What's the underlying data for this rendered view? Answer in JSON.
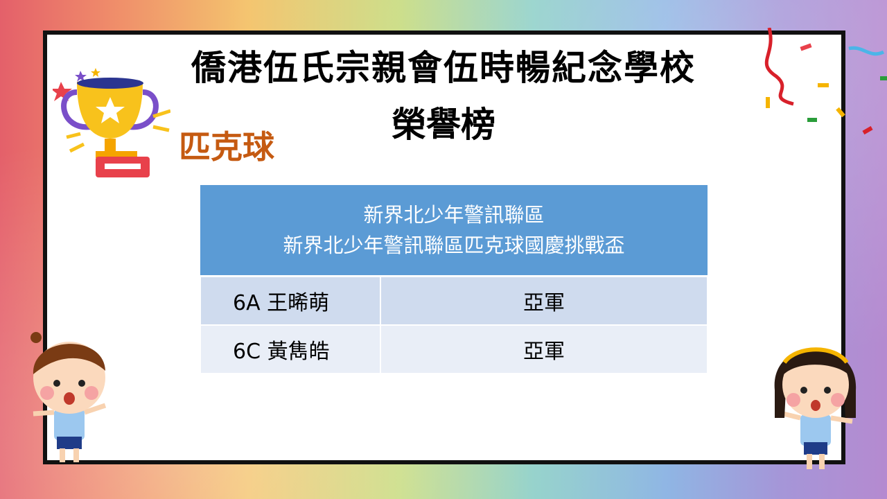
{
  "slide": {
    "school_title": "僑港伍氏宗親會伍時暢紀念學校",
    "subtitle": "榮譽榜",
    "sport": "匹克球"
  },
  "table": {
    "header_lines": [
      "新界北少年警訊聯區",
      "新界北少年警訊聯區匹克球國慶挑戰盃"
    ],
    "rows": [
      {
        "student": "6A 王晞萌",
        "award": "亞軍"
      },
      {
        "student": "6C 黃雋皓",
        "award": "亞軍"
      }
    ]
  },
  "colors": {
    "header": "#5b9bd5",
    "row_odd": "#cfdbee",
    "row_even": "#e9eef7",
    "sport_text": "#c55a11"
  },
  "icons": [
    "trophy-icon",
    "confetti-icon",
    "boy-cartoon",
    "girl-cartoon"
  ]
}
